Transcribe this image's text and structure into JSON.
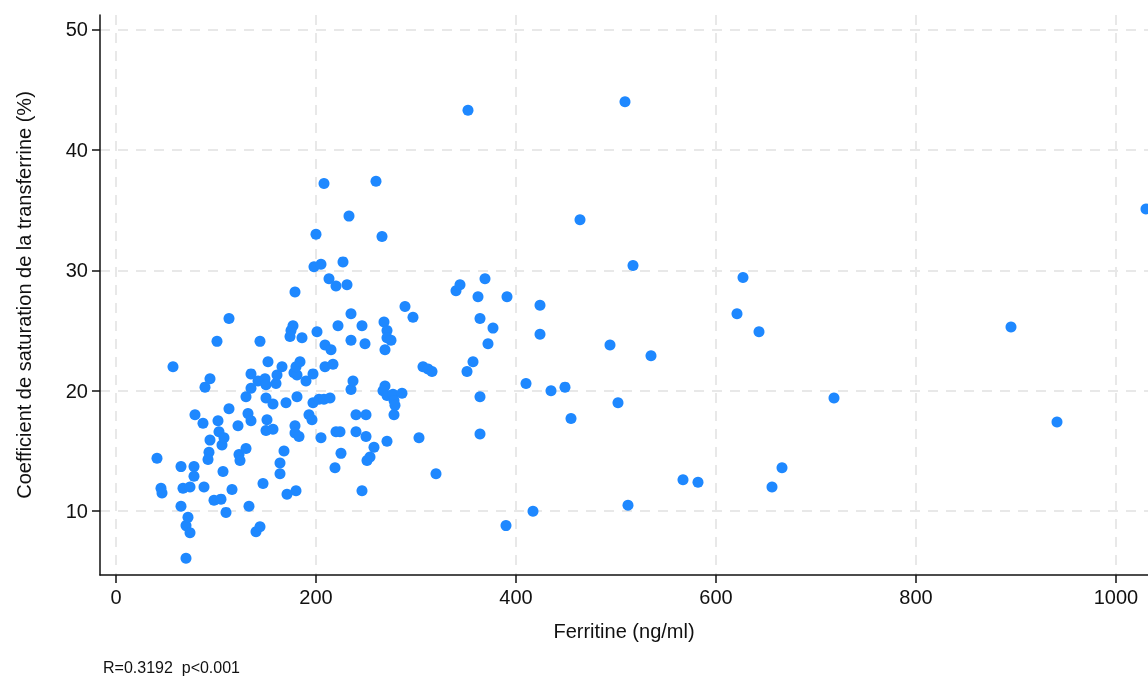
{
  "chart_data": {
    "type": "scatter",
    "xlabel": "Ferritine (ng/ml)",
    "ylabel": "Coefficient de saturation de la transferrine (%)",
    "annotations": [
      "R=0.3192  p<0.001"
    ],
    "xlim": [
      -16,
      1032
    ],
    "ylim": [
      4.7,
      51.2
    ],
    "xticks": [
      0,
      200,
      400,
      600,
      800,
      1000
    ],
    "yticks": [
      10,
      20,
      30,
      40,
      50
    ],
    "grid": true,
    "marker": "circle",
    "series": [
      {
        "color": "#1e88ff",
        "x": [
          41,
          45,
          46,
          57,
          65,
          67,
          65,
          70,
          72,
          74,
          70,
          78,
          78,
          74,
          79,
          87,
          89,
          94,
          94,
          93,
          92,
          88,
          102,
          103,
          101,
          98,
          105,
          106,
          108,
          107,
          110,
          113,
          113,
          116,
          122,
          123,
          124,
          130,
          130,
          135,
          135,
          132,
          135,
          133,
          142,
          140,
          144,
          144,
          147,
          149,
          150,
          152,
          150,
          151,
          150,
          157,
          157,
          160,
          161,
          166,
          164,
          164,
          168,
          171,
          170,
          175,
          177,
          174,
          178,
          179,
          179,
          180,
          181,
          180,
          179,
          186,
          184,
          181,
          183,
          190,
          193,
          197,
          196,
          197,
          198,
          200,
          201,
          203,
          205,
          205,
          208,
          209,
          209,
          208,
          214,
          213,
          220,
          215,
          217,
          220,
          219,
          222,
          224,
          225,
          227,
          231,
          233,
          235,
          235,
          235,
          237,
          240,
          240,
          246,
          246,
          249,
          250,
          250,
          251,
          254,
          258,
          260,
          266,
          268,
          269,
          271,
          271,
          269,
          267,
          271,
          277,
          278,
          279,
          278,
          271,
          275,
          286,
          289,
          297,
          303,
          307,
          312,
          316,
          320,
          340,
          344,
          351,
          352,
          357,
          362,
          364,
          364,
          364,
          369,
          372,
          377,
          391,
          390,
          410,
          417,
          424,
          424,
          435,
          449,
          455,
          464,
          494,
          502,
          509,
          512,
          517,
          535,
          567,
          582,
          621,
          627,
          643,
          656,
          666,
          718,
          895,
          941,
          1030
        ],
        "values": [
          14.4,
          11.9,
          11.5,
          22.0,
          13.7,
          11.9,
          10.4,
          8.8,
          9.5,
          8.2,
          6.1,
          13.7,
          12.9,
          12.0,
          18.0,
          17.3,
          20.3,
          21.0,
          15.9,
          14.9,
          14.3,
          12.0,
          17.5,
          16.6,
          24.1,
          10.9,
          11.0,
          15.5,
          16.1,
          13.3,
          9.9,
          26.0,
          18.5,
          11.8,
          17.1,
          14.7,
          14.2,
          15.2,
          19.5,
          21.4,
          20.2,
          18.1,
          17.5,
          10.4,
          20.8,
          8.3,
          8.7,
          24.1,
          12.3,
          21.0,
          20.5,
          22.4,
          19.4,
          17.6,
          16.7,
          16.8,
          18.9,
          20.6,
          21.3,
          22.0,
          14.0,
          13.1,
          15.0,
          11.4,
          19.0,
          25.0,
          25.4,
          24.5,
          21.5,
          17.1,
          16.5,
          11.7,
          21.3,
          22.0,
          28.2,
          24.4,
          22.4,
          19.5,
          16.2,
          20.8,
          18.0,
          21.4,
          17.6,
          19.0,
          30.3,
          33.0,
          24.9,
          19.3,
          16.1,
          30.5,
          37.2,
          23.8,
          22.0,
          19.3,
          19.4,
          29.3,
          28.7,
          23.4,
          22.2,
          16.6,
          13.6,
          25.4,
          16.6,
          14.8,
          30.7,
          28.8,
          34.5,
          26.4,
          24.2,
          20.1,
          20.8,
          18.0,
          16.6,
          25.4,
          11.7,
          23.9,
          18.0,
          16.2,
          14.2,
          14.5,
          15.3,
          37.4,
          32.8,
          25.7,
          23.4,
          25.0,
          24.4,
          20.4,
          20.0,
          19.6,
          19.7,
          19.2,
          18.8,
          18.0,
          15.8,
          24.2,
          19.8,
          27.0,
          26.1,
          16.1,
          22.0,
          21.8,
          21.6,
          13.1,
          28.3,
          28.8,
          21.6,
          43.3,
          22.4,
          27.8,
          26.0,
          19.5,
          16.4,
          29.3,
          23.9,
          25.2,
          27.8,
          8.8,
          20.6,
          10.0,
          27.1,
          24.7,
          20.0,
          20.3,
          17.7,
          34.2,
          23.8,
          19.0,
          44.0,
          10.5,
          30.4,
          22.9,
          12.6,
          12.4,
          26.4,
          29.4,
          24.9,
          12.0,
          13.6,
          19.4,
          25.3,
          17.4,
          35.1
        ]
      }
    ]
  }
}
